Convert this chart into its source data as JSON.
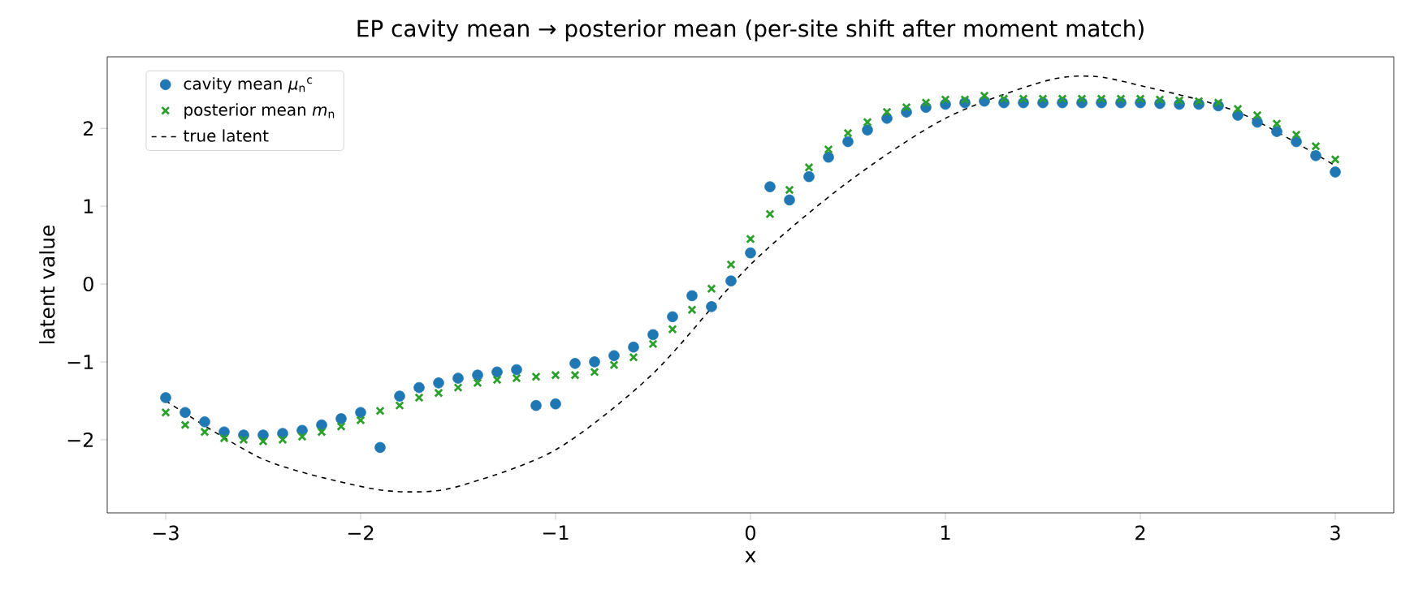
{
  "chart_data": {
    "type": "scatter",
    "title": "EP cavity mean → posterior mean (per-site shift after moment match)",
    "xlabel": "x",
    "ylabel": "latent value",
    "x": [
      -3.0,
      -2.9,
      -2.8,
      -2.7,
      -2.6,
      -2.5,
      -2.4,
      -2.3,
      -2.2,
      -2.1,
      -2.0,
      -1.9,
      -1.8,
      -1.7,
      -1.6,
      -1.5,
      -1.4,
      -1.3,
      -1.2,
      -1.1,
      -1.0,
      -0.9,
      -0.8,
      -0.7,
      -0.6,
      -0.5,
      -0.4,
      -0.3,
      -0.2,
      -0.1,
      0.0,
      0.1,
      0.2,
      0.3,
      0.4,
      0.5,
      0.6,
      0.7,
      0.8,
      0.9,
      1.0,
      1.1,
      1.2,
      1.3,
      1.4,
      1.5,
      1.6,
      1.7,
      1.8,
      1.9,
      2.0,
      2.1,
      2.2,
      2.3,
      2.4,
      2.5,
      2.6,
      2.7,
      2.8,
      2.9,
      3.0
    ],
    "series": [
      {
        "name": "cavity mean *μ*$_{n}$$^{c}$",
        "marker": "circle",
        "color": "#1f77b4",
        "values": [
          -1.46,
          -1.65,
          -1.77,
          -1.9,
          -1.94,
          -1.94,
          -1.92,
          -1.88,
          -1.81,
          -1.73,
          -1.65,
          -2.1,
          -1.44,
          -1.33,
          -1.27,
          -1.21,
          -1.17,
          -1.13,
          -1.1,
          -1.56,
          -1.54,
          -1.02,
          -1.0,
          -0.92,
          -0.81,
          -0.65,
          -0.42,
          -0.15,
          -0.29,
          0.04,
          0.4,
          1.25,
          1.08,
          1.38,
          1.63,
          1.83,
          1.98,
          2.13,
          2.21,
          2.27,
          2.31,
          2.33,
          2.35,
          2.33,
          2.33,
          2.33,
          2.33,
          2.33,
          2.33,
          2.33,
          2.33,
          2.32,
          2.31,
          2.31,
          2.29,
          2.17,
          2.08,
          1.96,
          1.83,
          1.65,
          1.44
        ]
      },
      {
        "name": "posterior mean *m*$_{n}$",
        "marker": "cross",
        "color": "#2ca02c",
        "values": [
          -1.65,
          -1.81,
          -1.9,
          -1.98,
          -2.0,
          -2.02,
          -2.0,
          -1.96,
          -1.9,
          -1.83,
          -1.75,
          -1.63,
          -1.56,
          -1.46,
          -1.4,
          -1.33,
          -1.27,
          -1.23,
          -1.21,
          -1.19,
          -1.17,
          -1.17,
          -1.13,
          -1.04,
          -0.94,
          -0.77,
          -0.58,
          -0.33,
          -0.06,
          0.25,
          0.58,
          0.9,
          1.21,
          1.5,
          1.73,
          1.94,
          2.08,
          2.21,
          2.27,
          2.33,
          2.37,
          2.37,
          2.42,
          2.38,
          2.38,
          2.38,
          2.38,
          2.38,
          2.38,
          2.38,
          2.38,
          2.37,
          2.36,
          2.35,
          2.33,
          2.25,
          2.17,
          2.06,
          1.92,
          1.77,
          1.6
        ]
      },
      {
        "name": "true latent",
        "type": "line",
        "marker": "none",
        "line_style": "dashed",
        "color": "#000000",
        "x": [
          -3.0,
          -2.5,
          -2.0,
          -1.75,
          -1.5,
          -1.0,
          -0.5,
          0.0,
          0.5,
          1.0,
          1.5,
          1.75,
          2.0,
          2.5,
          3.0
        ],
        "values": [
          -1.5,
          -2.25,
          -2.6,
          -2.67,
          -2.6,
          -2.13,
          -1.15,
          0.25,
          1.31,
          2.13,
          2.6,
          2.67,
          2.55,
          2.21,
          1.52
        ]
      }
    ],
    "xlim": [
      -3.3,
      3.3
    ],
    "ylim": [
      -2.94,
      2.92
    ],
    "xticks": [
      {
        "value": -3,
        "label": "−3"
      },
      {
        "value": -2,
        "label": "−2"
      },
      {
        "value": -1,
        "label": "−1"
      },
      0,
      1,
      2,
      3
    ],
    "yticks": [
      {
        "value": -2,
        "label": "−2"
      },
      {
        "value": -1,
        "label": "−1"
      },
      0,
      1,
      2
    ],
    "legend": "top left"
  }
}
